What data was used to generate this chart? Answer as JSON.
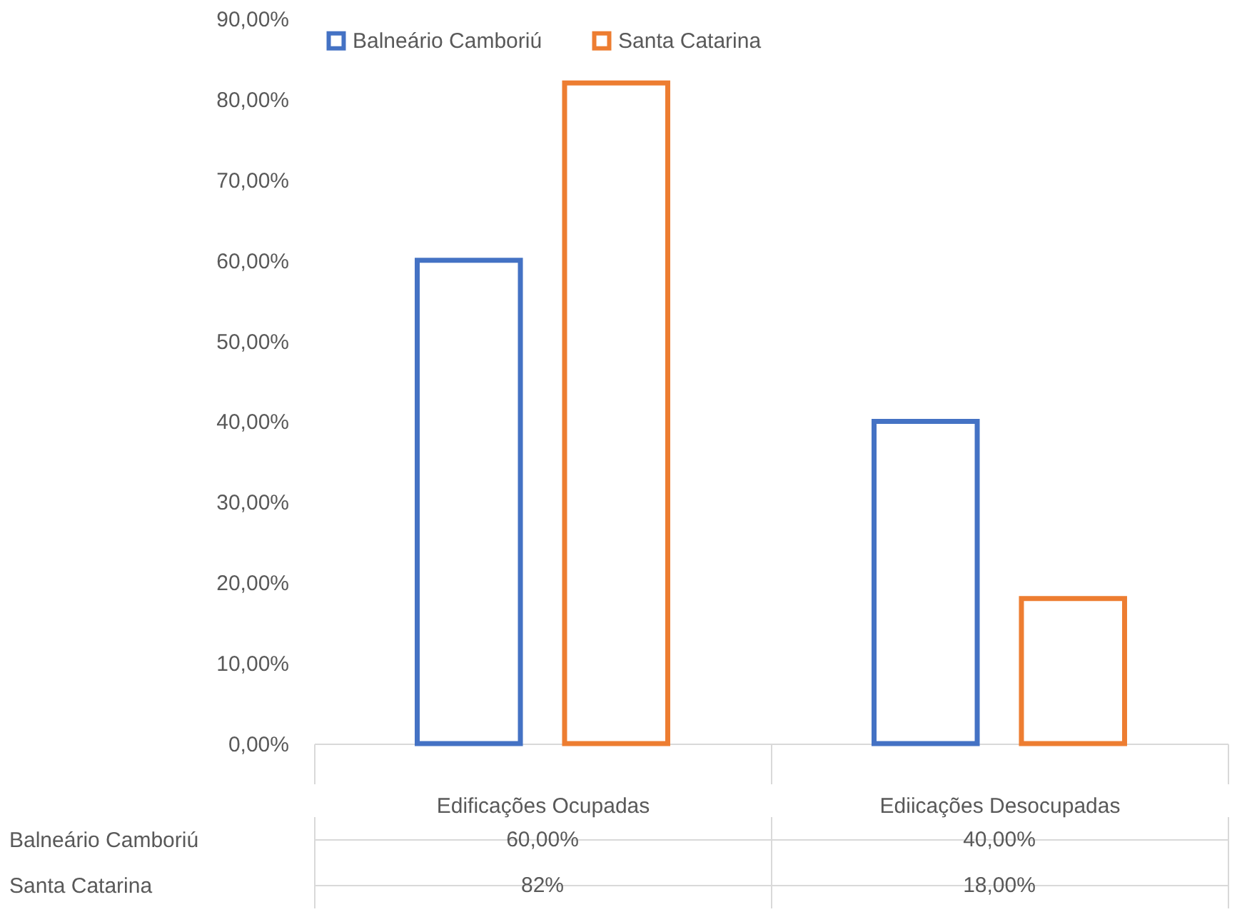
{
  "chart_data": {
    "type": "bar",
    "categories": [
      "Edificações Ocupadas",
      "Ediicações Desocupadas"
    ],
    "series": [
      {
        "name": "Balneário Camboriú",
        "color": "#4472c4",
        "values": [
          60,
          40
        ],
        "value_labels": [
          "60,00%",
          "40,00%"
        ]
      },
      {
        "name": "Santa Catarina",
        "color": "#ed7d31",
        "values": [
          82,
          18
        ],
        "value_labels": [
          "82%",
          "18,00%"
        ]
      }
    ],
    "ylim": [
      0,
      90
    ],
    "yticks": [
      {
        "value": 0,
        "label": "0,00%"
      },
      {
        "value": 10,
        "label": "10,00%"
      },
      {
        "value": 20,
        "label": "20,00%"
      },
      {
        "value": 30,
        "label": "30,00%"
      },
      {
        "value": 40,
        "label": "40,00%"
      },
      {
        "value": 50,
        "label": "50,00%"
      },
      {
        "value": 60,
        "label": "60,00%"
      },
      {
        "value": 70,
        "label": "70,00%"
      },
      {
        "value": 80,
        "label": "80,00%"
      },
      {
        "value": 90,
        "label": "90,00%"
      }
    ],
    "grid": false,
    "legend": "top left"
  }
}
